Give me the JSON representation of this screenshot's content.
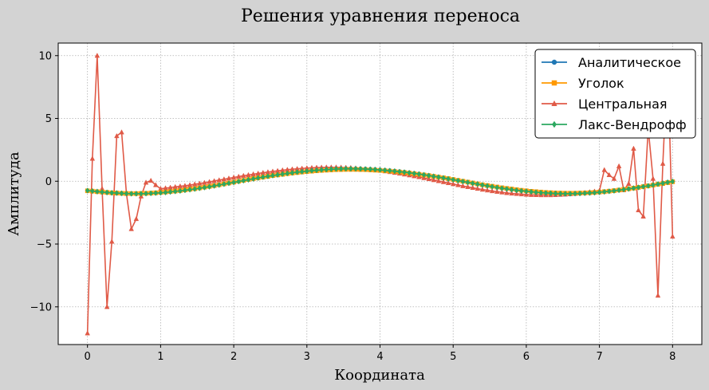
{
  "chart_data": {
    "type": "line",
    "title": "Решения уравнения переноса",
    "xlabel": "Координата",
    "ylabel": "Амплитуда",
    "xlim": [
      -0.4,
      8.4
    ],
    "ylim": [
      -13.0,
      11.0
    ],
    "xticks": [
      0,
      1,
      2,
      3,
      4,
      5,
      6,
      7,
      8
    ],
    "yticks": [
      -10,
      -5,
      0,
      5,
      10
    ],
    "ytick_labels": [
      "−10",
      "−5",
      "0",
      "5",
      "10"
    ],
    "grid": true,
    "legend_position": "top-right",
    "x": [
      0,
      0.067,
      0.133,
      0.2,
      0.267,
      0.333,
      0.4,
      0.467,
      0.533,
      0.6,
      0.667,
      0.733,
      0.8,
      0.867,
      0.933,
      1.0,
      1.067,
      1.133,
      1.2,
      1.267,
      1.333,
      1.4,
      1.467,
      1.533,
      1.6,
      1.667,
      1.733,
      1.8,
      1.867,
      1.933,
      2.0,
      2.067,
      2.133,
      2.2,
      2.267,
      2.333,
      2.4,
      2.467,
      2.533,
      2.6,
      2.667,
      2.733,
      2.8,
      2.867,
      2.933,
      3.0,
      3.067,
      3.133,
      3.2,
      3.267,
      3.333,
      3.4,
      3.467,
      3.533,
      3.6,
      3.667,
      3.733,
      3.8,
      3.867,
      3.933,
      4.0,
      4.067,
      4.133,
      4.2,
      4.267,
      4.333,
      4.4,
      4.467,
      4.533,
      4.6,
      4.667,
      4.733,
      4.8,
      4.867,
      4.933,
      5.0,
      5.067,
      5.133,
      5.2,
      5.267,
      5.333,
      5.4,
      5.467,
      5.533,
      5.6,
      5.667,
      5.733,
      5.8,
      5.867,
      5.933,
      6.0,
      6.067,
      6.133,
      6.2,
      6.267,
      6.333,
      6.4,
      6.467,
      6.533,
      6.6,
      6.667,
      6.733,
      6.8,
      6.867,
      6.933,
      7.0,
      7.067,
      7.133,
      7.2,
      7.267,
      7.333,
      7.4,
      7.467,
      7.533,
      7.6,
      7.667,
      7.733,
      7.8,
      7.867,
      7.933,
      8.0
    ],
    "series": [
      {
        "name": "Аналитическое",
        "color": "#1f77b4",
        "marker": "circle",
        "values": [
          -0.76,
          -0.8,
          -0.84,
          -0.88,
          -0.91,
          -0.94,
          -0.96,
          -0.98,
          -0.99,
          -1.0,
          -1.0,
          -0.99,
          -0.98,
          -0.96,
          -0.94,
          -0.91,
          -0.88,
          -0.84,
          -0.8,
          -0.76,
          -0.71,
          -0.66,
          -0.6,
          -0.55,
          -0.49,
          -0.42,
          -0.36,
          -0.29,
          -0.22,
          -0.15,
          -0.08,
          -0.01,
          0.06,
          0.13,
          0.2,
          0.27,
          0.34,
          0.4,
          0.46,
          0.52,
          0.58,
          0.63,
          0.68,
          0.73,
          0.77,
          0.81,
          0.85,
          0.88,
          0.91,
          0.94,
          0.96,
          0.98,
          0.99,
          1.0,
          1.0,
          1.0,
          0.99,
          0.98,
          0.96,
          0.94,
          0.91,
          0.88,
          0.85,
          0.81,
          0.77,
          0.73,
          0.68,
          0.63,
          0.58,
          0.52,
          0.46,
          0.4,
          0.34,
          0.27,
          0.2,
          0.13,
          0.06,
          -0.01,
          -0.08,
          -0.15,
          -0.22,
          -0.29,
          -0.36,
          -0.42,
          -0.49,
          -0.55,
          -0.6,
          -0.66,
          -0.71,
          -0.76,
          -0.8,
          -0.84,
          -0.88,
          -0.91,
          -0.94,
          -0.96,
          -0.98,
          -0.99,
          -1.0,
          -1.0,
          -0.99,
          -0.98,
          -0.96,
          -0.94,
          -0.91,
          -0.88,
          -0.84,
          -0.8,
          -0.76,
          -0.71,
          -0.66,
          -0.6,
          -0.55,
          -0.49,
          -0.42,
          -0.36,
          -0.29,
          -0.22,
          -0.15,
          -0.08,
          -0.01
        ]
      },
      {
        "name": "Уголок",
        "color": "#ff9900",
        "marker": "square",
        "values": [
          -0.76,
          -0.79,
          -0.83,
          -0.86,
          -0.89,
          -0.92,
          -0.94,
          -0.96,
          -0.97,
          -0.98,
          -0.98,
          -0.97,
          -0.96,
          -0.94,
          -0.92,
          -0.89,
          -0.86,
          -0.82,
          -0.78,
          -0.74,
          -0.69,
          -0.64,
          -0.59,
          -0.53,
          -0.47,
          -0.41,
          -0.35,
          -0.28,
          -0.21,
          -0.14,
          -0.07,
          0.0,
          0.07,
          0.14,
          0.21,
          0.27,
          0.33,
          0.39,
          0.45,
          0.5,
          0.55,
          0.6,
          0.65,
          0.69,
          0.73,
          0.77,
          0.8,
          0.83,
          0.86,
          0.88,
          0.9,
          0.92,
          0.93,
          0.94,
          0.94,
          0.94,
          0.93,
          0.92,
          0.9,
          0.88,
          0.86,
          0.83,
          0.8,
          0.77,
          0.73,
          0.69,
          0.65,
          0.6,
          0.55,
          0.5,
          0.45,
          0.39,
          0.33,
          0.27,
          0.21,
          0.14,
          0.07,
          0.0,
          -0.07,
          -0.14,
          -0.21,
          -0.28,
          -0.34,
          -0.4,
          -0.46,
          -0.52,
          -0.57,
          -0.62,
          -0.67,
          -0.72,
          -0.76,
          -0.8,
          -0.83,
          -0.86,
          -0.89,
          -0.91,
          -0.93,
          -0.94,
          -0.95,
          -0.95,
          -0.95,
          -0.94,
          -0.93,
          -0.91,
          -0.89,
          -0.86,
          -0.83,
          -0.79,
          -0.75,
          -0.7,
          -0.65,
          -0.6,
          -0.55,
          -0.49,
          -0.43,
          -0.37,
          -0.31,
          -0.24,
          -0.18,
          -0.11,
          -0.04
        ]
      },
      {
        "name": "Центральная",
        "color": "#e05a47",
        "marker": "triangle",
        "values": [
          -12.1,
          1.8,
          10.0,
          -0.6,
          -10.0,
          -4.8,
          3.6,
          3.9,
          -1.0,
          -3.8,
          -3.0,
          -1.2,
          -0.1,
          0.05,
          -0.3,
          -0.6,
          -0.55,
          -0.5,
          -0.45,
          -0.4,
          -0.36,
          -0.3,
          -0.24,
          -0.18,
          -0.12,
          -0.05,
          0.02,
          0.09,
          0.16,
          0.23,
          0.3,
          0.37,
          0.44,
          0.5,
          0.56,
          0.62,
          0.68,
          0.73,
          0.78,
          0.83,
          0.88,
          0.92,
          0.96,
          0.99,
          1.02,
          1.05,
          1.07,
          1.09,
          1.1,
          1.11,
          1.11,
          1.11,
          1.1,
          1.09,
          1.07,
          1.04,
          1.01,
          0.98,
          0.94,
          0.9,
          0.85,
          0.8,
          0.74,
          0.68,
          0.62,
          0.55,
          0.48,
          0.41,
          0.34,
          0.26,
          0.18,
          0.1,
          0.02,
          -0.06,
          -0.14,
          -0.22,
          -0.3,
          -0.38,
          -0.45,
          -0.52,
          -0.59,
          -0.66,
          -0.72,
          -0.78,
          -0.83,
          -0.88,
          -0.93,
          -0.97,
          -1.0,
          -1.03,
          -1.06,
          -1.08,
          -1.09,
          -1.1,
          -1.1,
          -1.1,
          -1.09,
          -1.07,
          -1.05,
          -1.02,
          -0.99,
          -0.95,
          -0.91,
          -0.86,
          -0.81,
          -0.75,
          0.9,
          0.5,
          0.2,
          1.2,
          -0.7,
          -0.2,
          2.6,
          -2.3,
          -2.8,
          4.2,
          0.2,
          -9.1,
          1.4,
          9.7,
          -4.4
        ]
      },
      {
        "name": "Лакс-Вендрофф",
        "color": "#2ca860",
        "marker": "diamond",
        "values": [
          -0.74,
          -0.78,
          -0.82,
          -0.86,
          -0.89,
          -0.92,
          -0.94,
          -0.96,
          -0.98,
          -0.99,
          -0.99,
          -0.99,
          -0.98,
          -0.96,
          -0.94,
          -0.92,
          -0.89,
          -0.85,
          -0.81,
          -0.77,
          -0.72,
          -0.67,
          -0.62,
          -0.56,
          -0.5,
          -0.44,
          -0.37,
          -0.3,
          -0.23,
          -0.16,
          -0.09,
          -0.02,
          0.05,
          0.12,
          0.19,
          0.26,
          0.33,
          0.39,
          0.45,
          0.51,
          0.57,
          0.62,
          0.67,
          0.72,
          0.76,
          0.8,
          0.84,
          0.87,
          0.9,
          0.93,
          0.95,
          0.97,
          0.98,
          0.99,
          0.99,
          0.99,
          0.98,
          0.97,
          0.95,
          0.93,
          0.9,
          0.87,
          0.84,
          0.8,
          0.76,
          0.72,
          0.67,
          0.62,
          0.57,
          0.51,
          0.45,
          0.39,
          0.33,
          0.26,
          0.19,
          0.12,
          0.05,
          -0.02,
          -0.09,
          -0.16,
          -0.23,
          -0.3,
          -0.37,
          -0.43,
          -0.5,
          -0.56,
          -0.61,
          -0.67,
          -0.72,
          -0.76,
          -0.8,
          -0.84,
          -0.88,
          -0.91,
          -0.93,
          -0.95,
          -0.97,
          -0.98,
          -0.99,
          -0.99,
          -0.98,
          -0.97,
          -0.95,
          -0.93,
          -0.91,
          -0.88,
          -0.84,
          -0.8,
          -0.76,
          -0.71,
          -0.66,
          -0.61,
          -0.55,
          -0.49,
          -0.43,
          -0.37,
          -0.3,
          -0.23,
          -0.16,
          -0.09,
          -0.02
        ]
      }
    ]
  }
}
